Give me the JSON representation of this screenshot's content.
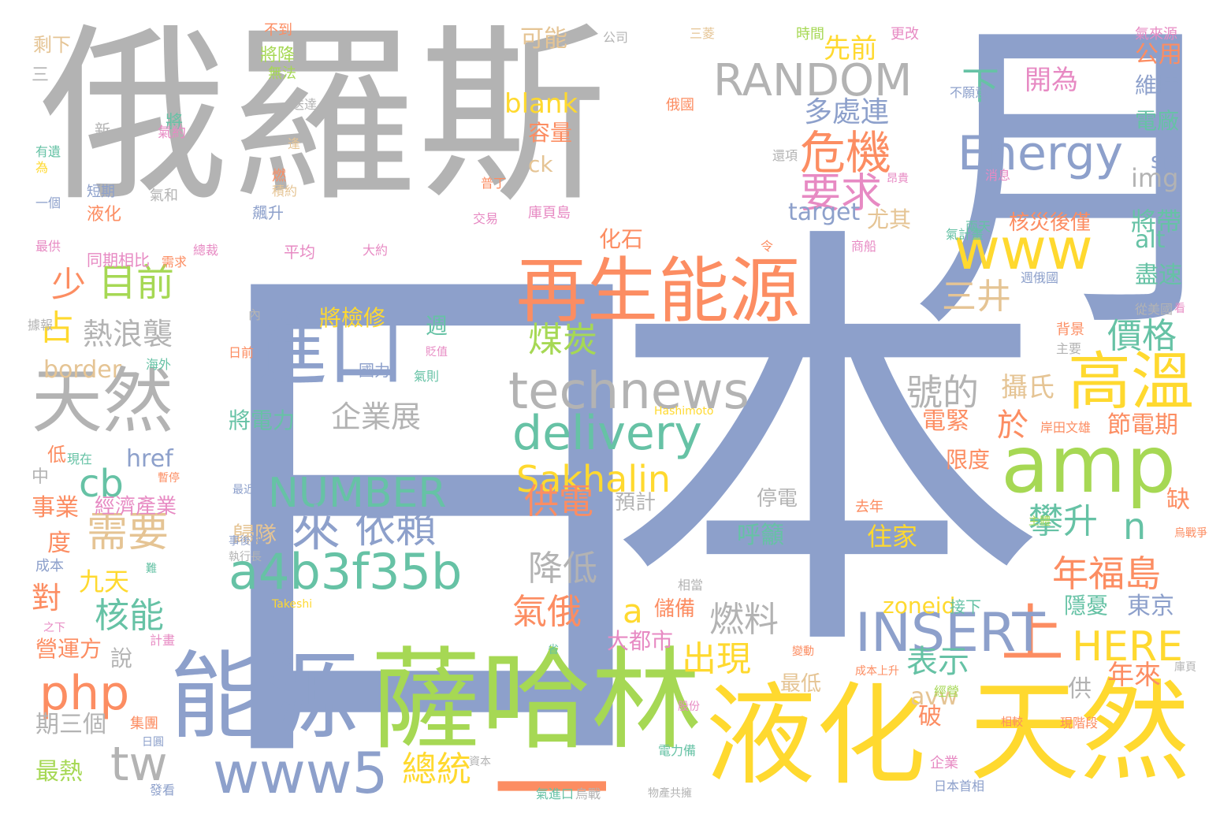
{
  "palette": {
    "gray": "#b3b3b3",
    "blue": "#8da0cb",
    "orange": "#fc8d62",
    "green": "#a6d854",
    "yellow": "#ffd92f",
    "teal": "#66c2a5",
    "pink": "#e78ac3",
    "tan": "#e5c494"
  },
  "words": [
    {
      "text": "俄羅斯",
      "color": "gray"
    },
    {
      "text": "本",
      "color": "blue"
    },
    {
      "text": "日",
      "color": "blue"
    },
    {
      "text": "月",
      "color": "blue"
    },
    {
      "text": "能源",
      "color": "blue"
    },
    {
      "text": "薩哈林",
      "color": "green"
    },
    {
      "text": "液化",
      "color": "yellow"
    },
    {
      "text": "天然",
      "color": "yellow"
    },
    {
      "text": "一",
      "color": "orange"
    },
    {
      "text": "再生能源",
      "color": "orange"
    },
    {
      "text": "amp",
      "color": "green"
    },
    {
      "text": "technews",
      "color": "gray"
    },
    {
      "text": "delivery",
      "color": "teal"
    },
    {
      "text": "天然",
      "color": "gray"
    },
    {
      "text": "進口",
      "color": "blue"
    },
    {
      "text": "RANDOM",
      "color": "gray"
    },
    {
      "text": "www",
      "color": "yellow"
    },
    {
      "text": "Energy",
      "color": "blue"
    },
    {
      "text": "高溫",
      "color": "yellow"
    },
    {
      "text": "上",
      "color": "orange"
    },
    {
      "text": "INSERT",
      "color": "blue"
    },
    {
      "text": "HERE",
      "color": "yellow"
    },
    {
      "text": "www5",
      "color": "blue"
    },
    {
      "text": "a4b3f35b",
      "color": "teal"
    },
    {
      "text": "NUMBER",
      "color": "teal"
    },
    {
      "text": "來",
      "color": "blue"
    },
    {
      "text": "依賴",
      "color": "blue"
    },
    {
      "text": "php",
      "color": "orange"
    },
    {
      "text": "tw",
      "color": "gray"
    },
    {
      "text": "Sakhalin",
      "color": "yellow"
    },
    {
      "text": "危機",
      "color": "orange"
    },
    {
      "text": "要求",
      "color": "pink"
    },
    {
      "text": "目前",
      "color": "green"
    },
    {
      "text": "少",
      "color": "orange"
    },
    {
      "text": "占",
      "color": "yellow"
    },
    {
      "text": "熱浪襲",
      "color": "gray"
    },
    {
      "text": "cb",
      "color": "teal"
    },
    {
      "text": "需要",
      "color": "tan"
    },
    {
      "text": "核能",
      "color": "teal"
    },
    {
      "text": "對",
      "color": "orange"
    },
    {
      "text": "九天",
      "color": "yellow"
    },
    {
      "text": "事業",
      "color": "orange"
    },
    {
      "text": "度",
      "color": "orange"
    },
    {
      "text": "說",
      "color": "gray"
    },
    {
      "text": "期三個",
      "color": "gray"
    },
    {
      "text": "最熱",
      "color": "green"
    },
    {
      "text": "營運方",
      "color": "orange"
    },
    {
      "text": "經濟產業",
      "color": "pink"
    },
    {
      "text": "border",
      "color": "tan"
    },
    {
      "text": "href",
      "color": "blue"
    },
    {
      "text": "低",
      "color": "orange"
    },
    {
      "text": "中",
      "color": "gray"
    },
    {
      "text": "成本",
      "color": "blue"
    },
    {
      "text": "煤炭",
      "color": "green"
    },
    {
      "text": "供電",
      "color": "orange"
    },
    {
      "text": "降低",
      "color": "gray"
    },
    {
      "text": "氣俄",
      "color": "orange"
    },
    {
      "text": "a",
      "color": "yellow"
    },
    {
      "text": "燃料",
      "color": "gray"
    },
    {
      "text": "出現",
      "color": "yellow"
    },
    {
      "text": "總統",
      "color": "yellow"
    },
    {
      "text": "表示",
      "color": "teal"
    },
    {
      "text": "號的",
      "color": "gray"
    },
    {
      "text": "於",
      "color": "orange"
    },
    {
      "text": "攝氏",
      "color": "tan"
    },
    {
      "text": "攀升",
      "color": "teal"
    },
    {
      "text": "n",
      "color": "teal"
    },
    {
      "text": "年福島",
      "color": "orange"
    },
    {
      "text": "價格",
      "color": "teal"
    },
    {
      "text": "三井",
      "color": "tan"
    },
    {
      "text": "多處連",
      "color": "blue"
    },
    {
      "text": "先前",
      "color": "yellow"
    },
    {
      "text": "下",
      "color": "teal"
    },
    {
      "text": "開為",
      "color": "pink"
    },
    {
      "text": "target",
      "color": "blue"
    },
    {
      "text": "尤其",
      "color": "tan"
    },
    {
      "text": "化石",
      "color": "orange"
    },
    {
      "text": "blank",
      "color": "yellow"
    },
    {
      "text": "容量",
      "color": "orange"
    },
    {
      "text": "ck",
      "color": "tan"
    },
    {
      "text": "可能",
      "color": "tan"
    },
    {
      "text": "公用",
      "color": "orange"
    },
    {
      "text": "維持",
      "color": "blue"
    },
    {
      "text": "電廠",
      "color": "teal"
    },
    {
      "text": "src",
      "color": "blue"
    },
    {
      "text": "img",
      "color": "gray"
    },
    {
      "text": "將帶",
      "color": "teal"
    },
    {
      "text": "alt",
      "color": "teal"
    },
    {
      "text": "盡速",
      "color": "teal"
    },
    {
      "text": "週",
      "color": "teal"
    },
    {
      "text": "將檢修",
      "color": "yellow"
    },
    {
      "text": "企業展",
      "color": "gray"
    },
    {
      "text": "將電力",
      "color": "teal"
    },
    {
      "text": "歸隊",
      "color": "tan"
    },
    {
      "text": "呼籲",
      "color": "teal"
    },
    {
      "text": "住家",
      "color": "yellow"
    },
    {
      "text": "zoneid",
      "color": "yellow"
    },
    {
      "text": "東京",
      "color": "blue"
    },
    {
      "text": "隱憂",
      "color": "teal"
    },
    {
      "text": "大都市",
      "color": "pink"
    },
    {
      "text": "儲備",
      "color": "orange"
    },
    {
      "text": "停電",
      "color": "gray"
    },
    {
      "text": "預計",
      "color": "gray"
    },
    {
      "text": "最低",
      "color": "tan"
    },
    {
      "text": "年來",
      "color": "orange"
    },
    {
      "text": "電緊",
      "color": "orange"
    },
    {
      "text": "節電期",
      "color": "orange"
    },
    {
      "text": "限度",
      "color": "orange"
    },
    {
      "text": "缺",
      "color": "orange"
    },
    {
      "text": "破",
      "color": "orange"
    },
    {
      "text": "avw",
      "color": "tan"
    },
    {
      "text": "供",
      "color": "gray"
    },
    {
      "text": "核災後僅",
      "color": "orange"
    },
    {
      "text": "剩下",
      "color": "tan"
    },
    {
      "text": "三",
      "color": "gray"
    },
    {
      "text": "將降",
      "color": "green"
    },
    {
      "text": "無法",
      "color": "green"
    },
    {
      "text": "不到",
      "color": "orange"
    },
    {
      "text": "公司",
      "color": "gray"
    },
    {
      "text": "時間",
      "color": "green"
    },
    {
      "text": "更改",
      "color": "pink"
    },
    {
      "text": "氣來源",
      "color": "pink"
    },
    {
      "text": "接下",
      "color": "teal"
    },
    {
      "text": "平均",
      "color": "pink"
    },
    {
      "text": "同期相比",
      "color": "pink"
    },
    {
      "text": "飆升",
      "color": "blue"
    },
    {
      "text": "液化",
      "color": "orange"
    },
    {
      "text": "Hashimoto",
      "color": "yellow"
    },
    {
      "text": "Takeshi",
      "color": "yellow"
    },
    {
      "text": "將",
      "color": "teal"
    },
    {
      "text": "氣約",
      "color": "pink"
    },
    {
      "text": "燃",
      "color": "orange"
    },
    {
      "text": "積約",
      "color": "tan"
    },
    {
      "text": "短期",
      "color": "blue"
    },
    {
      "text": "有遺",
      "color": "teal"
    },
    {
      "text": "為",
      "color": "yellow"
    },
    {
      "text": "一個",
      "color": "blue"
    },
    {
      "text": "最供",
      "color": "pink"
    },
    {
      "text": "氣和",
      "color": "gray"
    },
    {
      "text": "交易",
      "color": "pink"
    },
    {
      "text": "庫頁島",
      "color": "pink"
    },
    {
      "text": "普丁",
      "color": "orange"
    },
    {
      "text": "不願意",
      "color": "blue"
    },
    {
      "text": "消息",
      "color": "pink"
    },
    {
      "text": "氣計畫",
      "color": "teal"
    },
    {
      "text": "兩天",
      "color": "teal"
    },
    {
      "text": "商船",
      "color": "pink"
    },
    {
      "text": "週俄國",
      "color": "blue"
    },
    {
      "text": "從美國",
      "color": "gray"
    },
    {
      "text": "背景",
      "color": "orange"
    },
    {
      "text": "主要",
      "color": "gray"
    },
    {
      "text": "岸田文雄",
      "color": "orange"
    },
    {
      "text": "去年",
      "color": "orange"
    },
    {
      "text": "烏戰爭",
      "color": "orange"
    },
    {
      "text": "相當",
      "color": "gray"
    },
    {
      "text": "經營",
      "color": "green"
    },
    {
      "text": "成本上升",
      "color": "orange"
    },
    {
      "text": "相較",
      "color": "orange"
    },
    {
      "text": "現階段",
      "color": "orange"
    },
    {
      "text": "股份",
      "color": "pink"
    },
    {
      "text": "烏戰",
      "color": "gray"
    },
    {
      "text": "物產共擁",
      "color": "gray"
    },
    {
      "text": "日本首相",
      "color": "blue"
    },
    {
      "text": "企業",
      "color": "pink"
    },
    {
      "text": "電力備",
      "color": "teal"
    },
    {
      "text": "氣進口",
      "color": "teal"
    },
    {
      "text": "發看",
      "color": "blue"
    },
    {
      "text": "集團",
      "color": "orange"
    },
    {
      "text": "日圓",
      "color": "blue"
    },
    {
      "text": "資本",
      "color": "gray"
    },
    {
      "text": "事後被",
      "color": "blue"
    },
    {
      "text": "執行長",
      "color": "gray"
    },
    {
      "text": "最近",
      "color": "blue"
    },
    {
      "text": "主體",
      "color": "green"
    },
    {
      "text": "暫停",
      "color": "orange"
    },
    {
      "text": "現在",
      "color": "teal"
    },
    {
      "text": "日前",
      "color": "orange"
    },
    {
      "text": "內",
      "color": "gray"
    },
    {
      "text": "海外",
      "color": "teal"
    },
    {
      "text": "國力",
      "color": "blue"
    },
    {
      "text": "貶值",
      "color": "pink"
    },
    {
      "text": "氣則",
      "color": "teal"
    },
    {
      "text": "據報",
      "color": "gray"
    },
    {
      "text": "需求",
      "color": "orange"
    },
    {
      "text": "大約",
      "color": "pink"
    },
    {
      "text": "總裁",
      "color": "pink"
    },
    {
      "text": "令",
      "color": "orange"
    },
    {
      "text": "送達",
      "color": "gray"
    },
    {
      "text": "俄國",
      "color": "orange"
    },
    {
      "text": "新",
      "color": "gray"
    },
    {
      "text": "逢",
      "color": "tan"
    },
    {
      "text": "還項",
      "color": "gray"
    },
    {
      "text": "昂貴",
      "color": "pink"
    },
    {
      "text": "三菱",
      "color": "tan"
    },
    {
      "text": "難",
      "color": "teal"
    },
    {
      "text": "之下",
      "color": "pink"
    },
    {
      "text": "計畫",
      "color": "pink"
    },
    {
      "text": "省",
      "color": "teal"
    },
    {
      "text": "變動",
      "color": "orange"
    },
    {
      "text": "庫頁",
      "color": "gray"
    },
    {
      "text": "看",
      "color": "pink"
    },
    {
      "text": "號",
      "color": "gray"
    }
  ]
}
